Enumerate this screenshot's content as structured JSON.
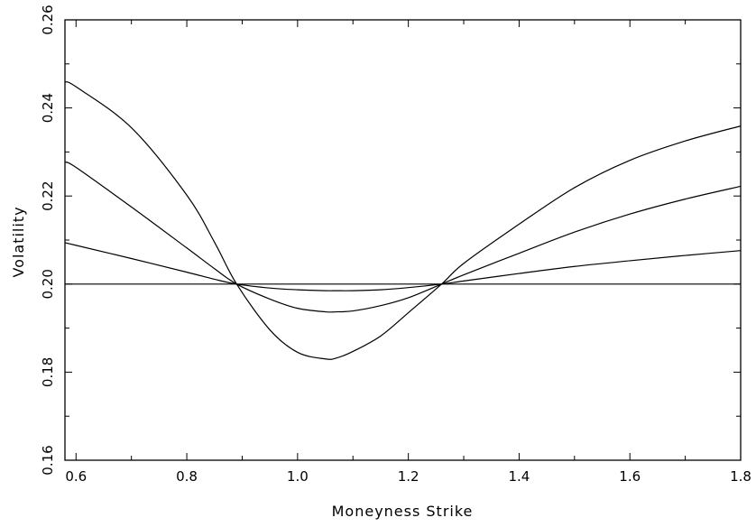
{
  "chart_data": {
    "type": "line",
    "title": "",
    "xlabel": "Moneyness Strike",
    "ylabel": "Volatility",
    "xlim": [
      0.58,
      1.8
    ],
    "ylim": [
      0.16,
      0.26
    ],
    "x_ticks": [
      0.6,
      0.8,
      1.0,
      1.2,
      1.4,
      1.6,
      1.8
    ],
    "x_tick_labels": [
      "0.6",
      "0.8",
      "1.0",
      "1.2",
      "1.4",
      "1.6",
      "1.8"
    ],
    "y_ticks": [
      0.16,
      0.18,
      0.2,
      0.22,
      0.24,
      0.26
    ],
    "y_tick_labels": [
      "0.16",
      "0.18",
      "0.20",
      "0.22",
      "0.24",
      "0.26"
    ],
    "grid": false,
    "legend": false,
    "line_color": "#000000",
    "series": [
      {
        "x": [
          0.58,
          0.6,
          0.7,
          0.8,
          0.85,
          0.89,
          0.95,
          1.0,
          1.05,
          1.07,
          1.1,
          1.15,
          1.2,
          1.26,
          1.3,
          1.4,
          1.5,
          1.6,
          1.7,
          1.8
        ],
        "values": [
          0.2,
          0.2,
          0.2,
          0.2,
          0.2,
          0.2,
          0.2,
          0.2,
          0.2,
          0.2,
          0.2,
          0.2,
          0.2,
          0.2,
          0.2,
          0.2,
          0.2,
          0.2,
          0.2,
          0.2
        ]
      },
      {
        "x": [
          0.58,
          0.6,
          0.7,
          0.8,
          0.85,
          0.89,
          0.95,
          1.0,
          1.05,
          1.07,
          1.1,
          1.15,
          1.2,
          1.26,
          1.3,
          1.4,
          1.5,
          1.6,
          1.7,
          1.8
        ],
        "values": [
          0.2094,
          0.2088,
          0.2058,
          0.2027,
          0.2011,
          0.2,
          0.1991,
          0.1987,
          0.1985,
          0.1985,
          0.1985,
          0.1987,
          0.1992,
          0.2,
          0.2007,
          0.2024,
          0.204,
          0.2053,
          0.2065,
          0.2076
        ]
      },
      {
        "x": [
          0.58,
          0.6,
          0.7,
          0.8,
          0.85,
          0.89,
          0.95,
          1.0,
          1.05,
          1.07,
          1.1,
          1.15,
          1.2,
          1.26,
          1.3,
          1.4,
          1.5,
          1.6,
          1.7,
          1.8
        ],
        "values": [
          0.2277,
          0.2265,
          0.2175,
          0.2082,
          0.2035,
          0.2,
          0.1966,
          0.1945,
          0.1937,
          0.1937,
          0.1939,
          0.1951,
          0.1969,
          0.2,
          0.2021,
          0.207,
          0.2118,
          0.2159,
          0.2193,
          0.2222
        ]
      },
      {
        "x": [
          0.58,
          0.6,
          0.7,
          0.8,
          0.85,
          0.89,
          0.95,
          1.0,
          1.05,
          1.07,
          1.1,
          1.15,
          1.2,
          1.26,
          1.3,
          1.4,
          1.5,
          1.6,
          1.7,
          1.8
        ],
        "values": [
          0.2459,
          0.2448,
          0.2355,
          0.2202,
          0.2095,
          0.2,
          0.1896,
          0.1845,
          0.183,
          0.1832,
          0.1847,
          0.1882,
          0.1935,
          0.2,
          0.2047,
          0.2136,
          0.2219,
          0.2281,
          0.2325,
          0.2359
        ]
      }
    ]
  }
}
